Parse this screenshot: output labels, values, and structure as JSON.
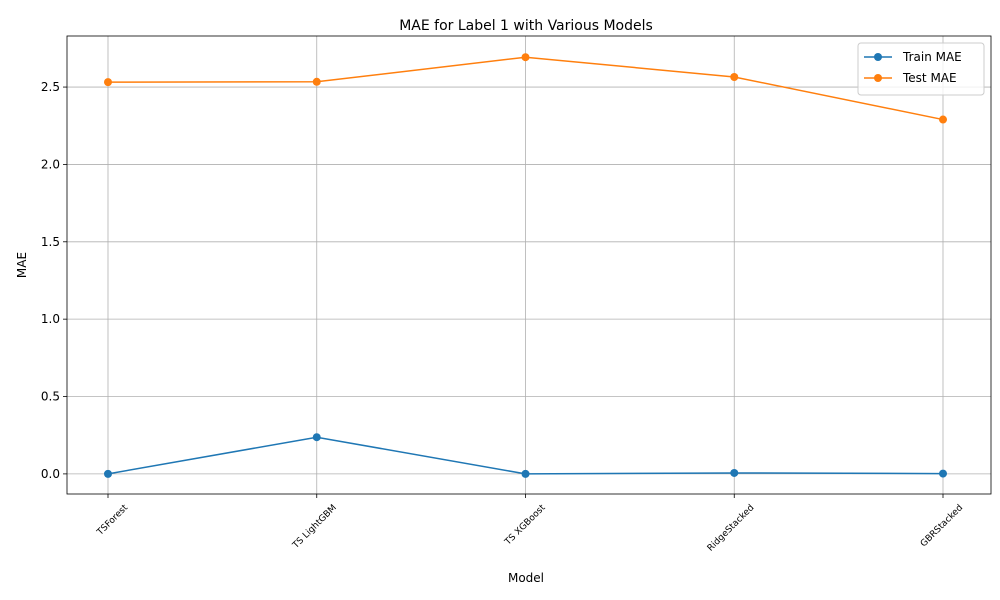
{
  "chart_data": {
    "type": "line",
    "title": "MAE for Label 1 with Various Models",
    "xlabel": "Model",
    "ylabel": "MAE",
    "categories": [
      "TSForest",
      "TS LightGBM",
      "TS XGBoost",
      "RidgeStacked",
      "GBRStacked"
    ],
    "series": [
      {
        "name": "Train MAE",
        "color": "#1f77b4",
        "values": [
          0.0,
          0.237,
          0.0,
          0.006,
          0.002
        ]
      },
      {
        "name": "Test MAE",
        "color": "#ff7f0e",
        "values": [
          2.532,
          2.534,
          2.693,
          2.565,
          2.29
        ]
      }
    ],
    "yticks": [
      "0.0",
      "0.5",
      "1.0",
      "1.5",
      "2.0",
      "2.5"
    ],
    "ylim": [
      -0.13,
      2.83
    ],
    "grid": true,
    "legend": "top-right",
    "marker": "circle"
  }
}
